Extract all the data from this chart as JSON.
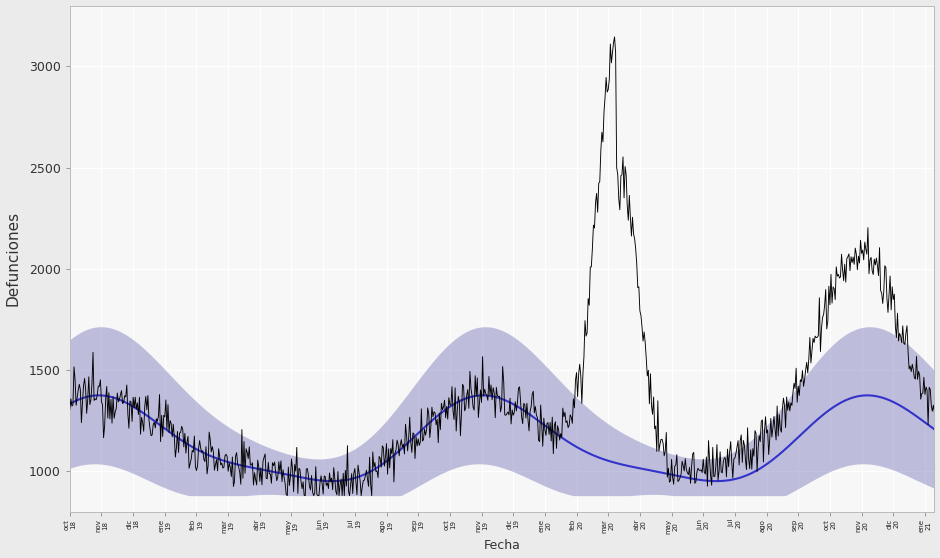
{
  "ylabel": "Defunciones",
  "xlabel": "Fecha",
  "ylim": [
    800,
    3300
  ],
  "yticks": [
    1000,
    1500,
    2000,
    2500,
    3000
  ],
  "bg_color": "#f5f5f5",
  "grid_color": "#ffffff",
  "actual_color": "#000000",
  "mean_color": "#3333cc",
  "band_color": "#7777bb",
  "band_alpha": 0.45,
  "n_points": 820,
  "covid_spike_day": 165,
  "covid2_spike_day": 340,
  "start_month": 9,
  "start_year": 2018
}
